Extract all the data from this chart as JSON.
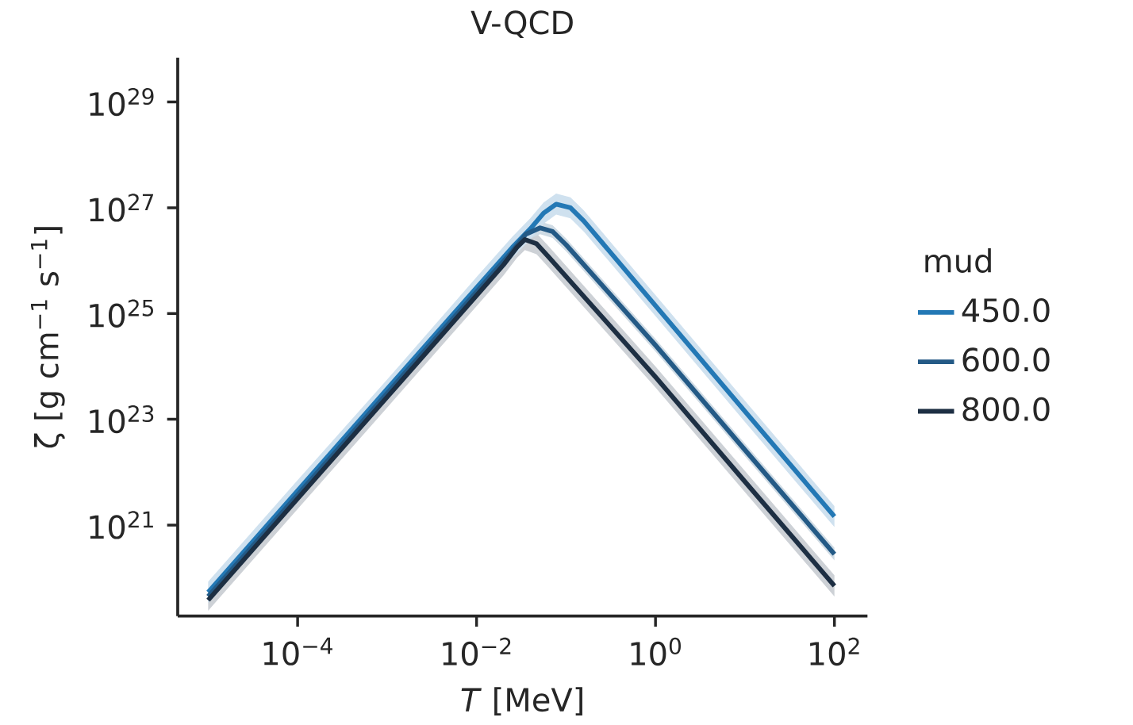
{
  "chart_data": {
    "type": "line",
    "title": "V-QCD",
    "xlabel": "*T* [MeV]",
    "ylabel": "ζ [g cm$^{−1}$ s$^{−1}$]",
    "legend_title": "mud",
    "log": "xy",
    "legend": "right",
    "grid": false,
    "xlim": [
      4.57e-06,
      234
    ],
    "ylim": [
      1.9e+19,
      6.9e+29
    ],
    "xticks": [
      {
        "value": 0.0001,
        "label": "10$^{−4}$"
      },
      {
        "value": 0.01,
        "label": "10$^{−2}$"
      },
      {
        "value": 1,
        "label": "10$^{0}$"
      },
      {
        "value": 100,
        "label": "10$^{2}$"
      }
    ],
    "yticks": [
      {
        "value": 1e+21,
        "label": "10$^{21}$"
      },
      {
        "value": 1e+23,
        "label": "10$^{23}$"
      },
      {
        "value": 1e+25,
        "label": "10$^{25}$"
      },
      {
        "value": 1e+27,
        "label": "10$^{27}$"
      },
      {
        "value": 1e+29,
        "label": "10$^{29}$"
      }
    ],
    "series": [
      {
        "name": "450.0",
        "color": "#2378b5",
        "x": [
          1e-05,
          0.0001,
          0.001,
          0.01,
          0.0251,
          0.0398,
          0.0562,
          0.0776,
          0.112,
          0.158,
          1,
          10,
          100
        ],
        "values": [
          5.37e+19,
          4.47e+21,
          3.72e+23,
          3.09e+25,
          1.78e+26,
          3.98e+26,
          7.94e+26,
          1.17e+27,
          1e+27,
          5.62e+26,
          1.41e+25,
          1.41e+23,
          1.45e+21
        ],
        "upper": [
          8.51e+19,
          7.08e+21,
          5.62e+23,
          4.9e+25,
          2.82e+26,
          6.31e+26,
          1.26e+27,
          1.86e+27,
          1.58e+27,
          8.91e+26,
          2.24e+25,
          2.24e+23,
          2.29e+21
        ],
        "lower": [
          3.39e+19,
          2.82e+21,
          2.34e+23,
          1.95e+25,
          1.12e+26,
          2.51e+26,
          5.01e+26,
          7.41e+26,
          6.31e+26,
          3.55e+26,
          8.91e+24,
          8.91e+22,
          9.12e+20
        ]
      },
      {
        "name": "600.0",
        "color": "#245a86",
        "x": [
          1e-05,
          0.0001,
          0.001,
          0.01,
          0.0251,
          0.0355,
          0.0513,
          0.0708,
          0.1,
          1,
          10,
          100
        ],
        "values": [
          4.47e+19,
          3.72e+21,
          3.09e+23,
          2.57e+25,
          1.51e+26,
          3.16e+26,
          4.17e+26,
          3.55e+26,
          2e+26,
          2.51e+24,
          2.63e+22,
          2.82e+20
        ],
        "upper": [
          5.89e+19,
          4.9e+21,
          4.07e+23,
          3.39e+25,
          2e+26,
          4.17e+26,
          5.5e+26,
          4.68e+26,
          2.63e+26,
          3.31e+24,
          3.47e+22,
          3.72e+20
        ],
        "lower": [
          3.39e+19,
          2.82e+21,
          2.34e+23,
          1.95e+25,
          1.15e+26,
          2.4e+26,
          3.16e+26,
          2.69e+26,
          1.51e+26,
          1.91e+24,
          2e+22,
          2.14e+20
        ]
      },
      {
        "name": "800.0",
        "color": "#1d2f43",
        "x": [
          1e-05,
          0.0001,
          0.001,
          0.01,
          0.02,
          0.0282,
          0.0347,
          0.0468,
          0.0631,
          1,
          10,
          100
        ],
        "values": [
          3.8e+19,
          3.16e+21,
          2.63e+23,
          2.19e+25,
          8.32e+25,
          1.78e+26,
          2.51e+26,
          2.09e+26,
          1.2e+26,
          6.31e+23,
          6.61e+21,
          7.08e+19
        ],
        "upper": [
          6.03e+19,
          5.01e+21,
          4.17e+23,
          3.47e+25,
          1.32e+26,
          2.82e+26,
          3.98e+26,
          3.31e+26,
          1.91e+26,
          1e+24,
          1.05e+22,
          1.12e+20
        ],
        "lower": [
          2.4e+19,
          2e+21,
          1.66e+23,
          1.38e+25,
          5.25e+25,
          1.12e+26,
          1.58e+26,
          1.32e+26,
          7.59e+25,
          3.98e+23,
          4.17e+21,
          4.47e+19
        ]
      }
    ]
  }
}
